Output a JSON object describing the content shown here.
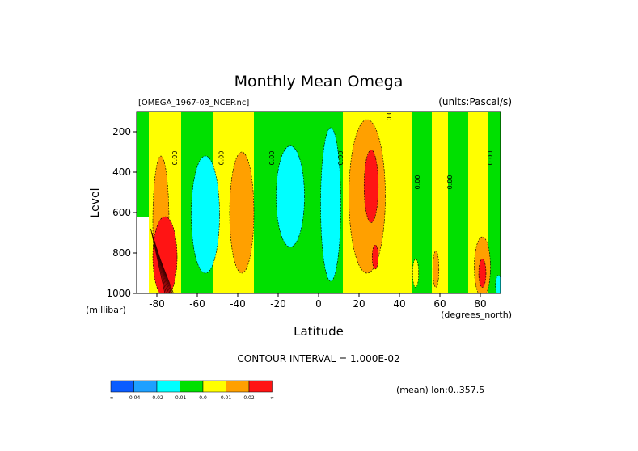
{
  "chart_data": {
    "type": "heatmap",
    "title": "Monthly Mean Omega",
    "file_label": "[OMEGA_1967-03_NCEP.nc]",
    "units_label": "(units:Pascal/s)",
    "xlabel": "Latitude",
    "x_unit_label": "(degrees_north)",
    "ylabel": "Level",
    "y_unit_label": "(millibar)",
    "xlim": [
      -90,
      90
    ],
    "ylim": [
      1000,
      100
    ],
    "x_ticks": [
      -80,
      -60,
      -40,
      -20,
      0,
      20,
      40,
      60,
      80
    ],
    "y_ticks": [
      200,
      400,
      600,
      800,
      1000
    ],
    "contour_interval_text": "CONTOUR INTERVAL = 1.000E-02",
    "mean_note": "(mean) lon:0..357.5",
    "contour_label": "0.00",
    "colorbar": {
      "colors": [
        "#0a5cff",
        "#1ea0ff",
        "#00ffff",
        "#00e000",
        "#ffff00",
        "#ffa000",
        "#ff1414"
      ],
      "labels": [
        "-∞",
        "-0.04",
        "-0.02",
        "-0.01",
        "0.0",
        "0.01",
        "0.02",
        "∞"
      ]
    },
    "bands": [
      {
        "x0": -90,
        "x1": -84,
        "color": "#00e000"
      },
      {
        "x0": -84,
        "x1": -75,
        "color": "#ffff00"
      },
      {
        "x0": -75,
        "x1": -68,
        "color": "#ffff00"
      },
      {
        "x0": -68,
        "x1": -52,
        "color": "#00e000"
      },
      {
        "x0": -52,
        "x1": -43,
        "color": "#ffff00"
      },
      {
        "x0": -43,
        "x1": -32,
        "color": "#ffff00"
      },
      {
        "x0": -32,
        "x1": -20,
        "color": "#00e000"
      },
      {
        "x0": -20,
        "x1": -2,
        "color": "#00e000"
      },
      {
        "x0": -2,
        "x1": 12,
        "color": "#00e000"
      },
      {
        "x0": 12,
        "x1": 36,
        "color": "#ffff00"
      },
      {
        "x0": 36,
        "x1": 46,
        "color": "#ffff00"
      },
      {
        "x0": 46,
        "x1": 56,
        "color": "#00e000"
      },
      {
        "x0": 56,
        "x1": 64,
        "color": "#ffff00"
      },
      {
        "x0": 64,
        "x1": 74,
        "color": "#00e000"
      },
      {
        "x0": 74,
        "x1": 84,
        "color": "#ffff00"
      },
      {
        "x0": 84,
        "x1": 90,
        "color": "#00e000"
      }
    ],
    "blobs": [
      {
        "cx": -56,
        "cy": 610,
        "rx": 7,
        "ry": 290,
        "color": "#00ffff"
      },
      {
        "cx": -38,
        "cy": 600,
        "rx": 6,
        "ry": 300,
        "color": "#ffa000"
      },
      {
        "cx": -14,
        "cy": 520,
        "rx": 7,
        "ry": 250,
        "color": "#00ffff"
      },
      {
        "cx": 6,
        "cy": 560,
        "rx": 5,
        "ry": 380,
        "color": "#00ffff"
      },
      {
        "cx": 24,
        "cy": 520,
        "rx": 9,
        "ry": 380,
        "color": "#ffa000"
      },
      {
        "cx": 26,
        "cy": 470,
        "rx": 3.5,
        "ry": 180,
        "color": "#ff1414"
      },
      {
        "cx": 28,
        "cy": 820,
        "rx": 1.5,
        "ry": 60,
        "color": "#ff1414"
      },
      {
        "cx": -78,
        "cy": 650,
        "rx": 4,
        "ry": 330,
        "color": "#ffa000"
      },
      {
        "cx": -76,
        "cy": 820,
        "rx": 6,
        "ry": 200,
        "color": "#ff1414"
      },
      {
        "cx": 81,
        "cy": 870,
        "rx": 4,
        "ry": 150,
        "color": "#ffa000"
      },
      {
        "cx": 81,
        "cy": 900,
        "rx": 1.8,
        "ry": 70,
        "color": "#ff1414"
      },
      {
        "cx": 58,
        "cy": 880,
        "rx": 1.5,
        "ry": 90,
        "color": "#ffa000"
      },
      {
        "cx": 48,
        "cy": 900,
        "rx": 1.5,
        "ry": 70,
        "color": "#ffff00"
      },
      {
        "cx": 89,
        "cy": 960,
        "rx": 1.5,
        "ry": 50,
        "color": "#00ffff"
      }
    ],
    "contour_label_positions": [
      {
        "lat": -70,
        "lev": 330
      },
      {
        "lat": -47,
        "lev": 330
      },
      {
        "lat": -22,
        "lev": 330
      },
      {
        "lat": 12,
        "lev": 330
      },
      {
        "lat": 36,
        "lev": 110
      },
      {
        "lat": 50,
        "lev": 450
      },
      {
        "lat": 66,
        "lev": 450
      },
      {
        "lat": 86,
        "lev": 330
      }
    ]
  }
}
